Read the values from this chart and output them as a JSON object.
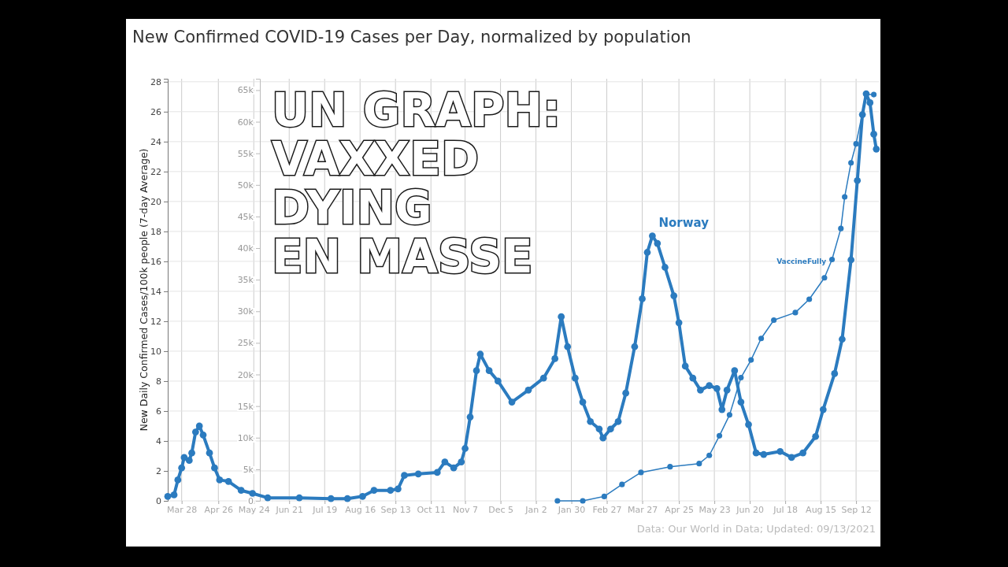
{
  "chart_data": {
    "type": "line",
    "title": "New Confirmed COVID-19 Cases per Day, normalized by population",
    "ylabel": "New Daily Confirmed Cases/100k people (7-day Average)",
    "annotations": [
      "UN GRAPH: VAXXED DYING EN MASSE",
      "Data: Our World in Data; Updated: 09/13/2021"
    ],
    "xlim": [
      "2020-03-17",
      "2021-09-30"
    ],
    "xticks": [
      {
        "value": "2020-03-28",
        "label": "Mar 28"
      },
      {
        "value": "2020-04-26",
        "label": "Apr 26"
      },
      {
        "value": "2020-05-24",
        "label": "May 24"
      },
      {
        "value": "2020-06-21",
        "label": "Jun 21"
      },
      {
        "value": "2020-07-19",
        "label": "Jul 19"
      },
      {
        "value": "2020-08-16",
        "label": "Aug 16"
      },
      {
        "value": "2020-09-13",
        "label": "Sep 13"
      },
      {
        "value": "2020-10-11",
        "label": "Oct 11"
      },
      {
        "value": "2020-11-07",
        "label": "Nov 7"
      },
      {
        "value": "2020-12-05",
        "label": "Dec 5"
      },
      {
        "value": "2021-01-02",
        "label": "Jan 2"
      },
      {
        "value": "2021-01-30",
        "label": "Jan 30"
      },
      {
        "value": "2021-02-27",
        "label": "Feb 27"
      },
      {
        "value": "2021-03-27",
        "label": "Mar 27"
      },
      {
        "value": "2021-04-25",
        "label": "Apr 25"
      },
      {
        "value": "2021-05-23",
        "label": "May 23"
      },
      {
        "value": "2021-06-20",
        "label": "Jun 20"
      },
      {
        "value": "2021-07-18",
        "label": "Jul 18"
      },
      {
        "value": "2021-08-15",
        "label": "Aug 15"
      },
      {
        "value": "2021-09-12",
        "label": "Sep 12"
      }
    ],
    "ylim": [
      0,
      28.2
    ],
    "yticks": [
      0,
      2,
      4,
      6,
      8,
      10,
      12,
      14,
      16,
      18,
      20,
      22,
      24,
      26,
      28
    ],
    "y2lim": [
      0,
      66800
    ],
    "y2ticks": [
      0,
      {
        "value": 5000,
        "label": "5k"
      },
      {
        "value": 10000,
        "label": "10k"
      },
      {
        "value": 15000,
        "label": "15k"
      },
      {
        "value": 20000,
        "label": "20k"
      },
      {
        "value": 25000,
        "label": "25k"
      },
      {
        "value": 30000,
        "label": "30k"
      },
      {
        "value": 35000,
        "label": "35k"
      },
      {
        "value": 40000,
        "label": "40k"
      },
      {
        "value": 45000,
        "label": "45k"
      },
      {
        "value": 50000,
        "label": "50k"
      },
      {
        "value": 55000,
        "label": "55k"
      },
      {
        "value": 60000,
        "label": "60k"
      },
      {
        "value": 65000,
        "label": "65k"
      }
    ],
    "grid": true,
    "legend": false,
    "marker": "circle",
    "series": [
      {
        "name": "Norway",
        "color": "#2b7bbf",
        "x": [
          "2020-03-17",
          "2020-03-22",
          "2020-03-25",
          "2020-03-28",
          "2020-03-30",
          "2020-04-03",
          "2020-04-05",
          "2020-04-08",
          "2020-04-11",
          "2020-04-14",
          "2020-04-19",
          "2020-04-23",
          "2020-04-27",
          "2020-05-04",
          "2020-05-14",
          "2020-05-23",
          "2020-06-04",
          "2020-06-29",
          "2020-07-24",
          "2020-08-06",
          "2020-08-18",
          "2020-08-27",
          "2020-09-09",
          "2020-09-15",
          "2020-09-20",
          "2020-10-01",
          "2020-10-16",
          "2020-10-22",
          "2020-10-29",
          "2020-11-04",
          "2020-11-07",
          "2020-11-11",
          "2020-11-16",
          "2020-11-19",
          "2020-11-26",
          "2020-12-03",
          "2020-12-14",
          "2020-12-27",
          "2021-01-08",
          "2021-01-17",
          "2021-01-22",
          "2021-01-27",
          "2021-02-02",
          "2021-02-08",
          "2021-02-14",
          "2021-02-21",
          "2021-02-24",
          "2021-03-02",
          "2021-03-08",
          "2021-03-14",
          "2021-03-21",
          "2021-03-27",
          "2021-03-31",
          "2021-04-04",
          "2021-04-08",
          "2021-04-14",
          "2021-04-21",
          "2021-04-25",
          "2021-04-30",
          "2021-05-06",
          "2021-05-12",
          "2021-05-19",
          "2021-05-25",
          "2021-05-29",
          "2021-06-02",
          "2021-06-08",
          "2021-06-13",
          "2021-06-19",
          "2021-06-25",
          "2021-07-01",
          "2021-07-14",
          "2021-07-23",
          "2021-08-01",
          "2021-08-11",
          "2021-08-17",
          "2021-08-26",
          "2021-09-01",
          "2021-09-08",
          "2021-09-13",
          "2021-09-17",
          "2021-09-20",
          "2021-09-23",
          "2021-09-26",
          "2021-09-28"
        ],
        "values": [
          0.3,
          0.4,
          1.4,
          2.2,
          2.9,
          2.7,
          3.2,
          4.6,
          5.0,
          4.4,
          3.2,
          2.2,
          1.4,
          1.3,
          0.7,
          0.5,
          0.2,
          0.2,
          0.15,
          0.15,
          0.3,
          0.7,
          0.7,
          0.8,
          1.7,
          1.8,
          1.9,
          2.6,
          2.2,
          2.6,
          3.5,
          5.6,
          8.7,
          9.8,
          8.7,
          8.0,
          6.6,
          7.4,
          8.2,
          9.5,
          12.3,
          10.3,
          8.2,
          6.6,
          5.3,
          4.8,
          4.2,
          4.8,
          5.3,
          7.2,
          10.3,
          13.5,
          16.6,
          17.7,
          17.2,
          15.6,
          13.7,
          11.9,
          9.0,
          8.2,
          7.4,
          7.7,
          7.5,
          6.1,
          7.4,
          8.7,
          6.6,
          5.1,
          3.2,
          3.1,
          3.3,
          2.9,
          3.2,
          4.3,
          6.1,
          8.5,
          10.8,
          16.1,
          21.4,
          25.8,
          27.2,
          26.6,
          24.5,
          23.5
        ]
      },
      {
        "name": "VaccineFully",
        "color": "#2b7bbf",
        "axis": "y2",
        "x": [
          "2021-01-19",
          "2021-02-08",
          "2021-02-25",
          "2021-03-11",
          "2021-03-26",
          "2021-04-18",
          "2021-05-11",
          "2021-05-19",
          "2021-05-27",
          "2021-06-04",
          "2021-06-13",
          "2021-06-21",
          "2021-06-29",
          "2021-07-09",
          "2021-07-26",
          "2021-08-06",
          "2021-08-18",
          "2021-08-24",
          "2021-08-31",
          "2021-09-03",
          "2021-09-08",
          "2021-09-12",
          "2021-09-20",
          "2021-09-26"
        ],
        "values": [
          0,
          0,
          700,
          2600,
          4500,
          5400,
          5900,
          7200,
          10300,
          13600,
          19500,
          22300,
          25700,
          28600,
          29800,
          31900,
          35300,
          38200,
          43100,
          48100,
          53500,
          56500,
          64300,
          64300
        ]
      }
    ]
  }
}
